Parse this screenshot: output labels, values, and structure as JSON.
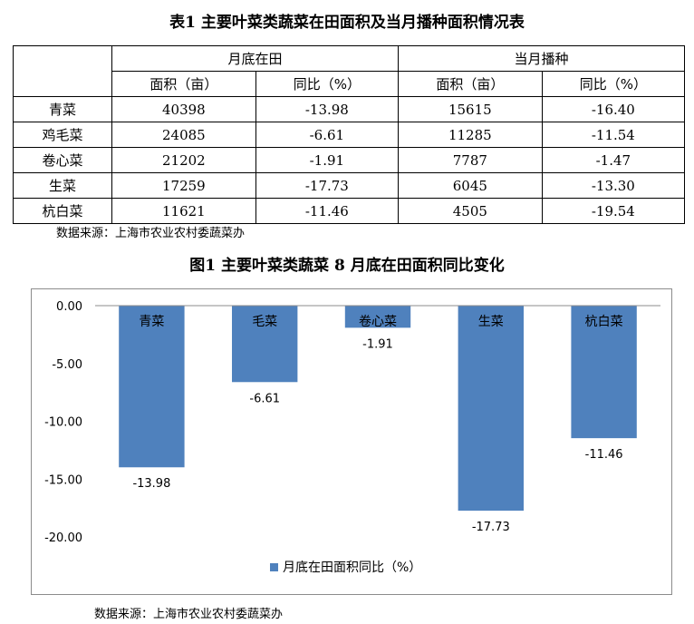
{
  "table": {
    "title": "表1  主要叶菜类蔬菜在田面积及当月播种面积情况表",
    "group_headers": [
      "月底在田",
      "当月播种"
    ],
    "sub_headers": [
      "面积（亩）",
      "同比（%）",
      "面积（亩）",
      "同比（%）"
    ],
    "rows": [
      {
        "name": "青菜",
        "area": "40398",
        "area_yoy": "-13.98",
        "sown": "15615",
        "sown_yoy": "-16.40"
      },
      {
        "name": "鸡毛菜",
        "area": "24085",
        "area_yoy": "-6.61",
        "sown": "11285",
        "sown_yoy": "-11.54"
      },
      {
        "name": "卷心菜",
        "area": "21202",
        "area_yoy": "-1.91",
        "sown": "7787",
        "sown_yoy": "-1.47"
      },
      {
        "name": "生菜",
        "area": "17259",
        "area_yoy": "-17.73",
        "sown": "6045",
        "sown_yoy": "-13.30"
      },
      {
        "name": "杭白菜",
        "area": "11621",
        "area_yoy": "-11.46",
        "sown": "4505",
        "sown_yoy": "-19.54"
      }
    ],
    "source": "数据来源：上海市农业农村委蔬菜办"
  },
  "figure": {
    "title": "图1  主要叶菜类蔬菜 8 月底在田面积同比变化",
    "source": "数据来源：上海市农业农村委蔬菜办"
  },
  "chart_data": {
    "type": "bar",
    "title": "",
    "xlabel": "",
    "ylabel": "",
    "categories": [
      "青菜",
      "毛菜",
      "卷心菜",
      "生菜",
      "杭白菜"
    ],
    "series": [
      {
        "name": "月底在田面积同比（%）",
        "values": [
          -13.98,
          -6.61,
          -1.91,
          -17.73,
          -11.46
        ],
        "color": "#4f81bd"
      }
    ],
    "data_labels": [
      "-13.98",
      "-6.61",
      "-1.91",
      "-17.73",
      "-11.46"
    ],
    "yticks": [
      "0.00",
      "-5.00",
      "-10.00",
      "-15.00",
      "-20.00"
    ],
    "ylim": [
      -20,
      0
    ],
    "grid": false,
    "legend": "bottom"
  }
}
